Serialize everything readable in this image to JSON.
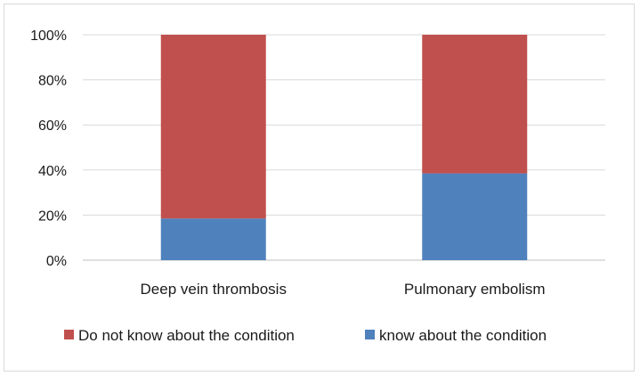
{
  "chart_data": {
    "type": "bar",
    "stacked": true,
    "percent": true,
    "categories": [
      "Deep vein thrombosis",
      "Pulmonary embolism"
    ],
    "series": [
      {
        "name": "know about the condition",
        "values": [
          18.5,
          38.5
        ],
        "color": "#4f81bd"
      },
      {
        "name": "Do not know about the condition",
        "values": [
          81.5,
          61.5
        ],
        "color": "#c0504d"
      }
    ],
    "yticks": [
      "0%",
      "20%",
      "40%",
      "60%",
      "80%",
      "100%"
    ],
    "ylim": [
      0,
      100
    ],
    "grid": true,
    "legend_position": "bottom",
    "legend_order": [
      "Do not know about the condition",
      "know about the condition"
    ]
  }
}
